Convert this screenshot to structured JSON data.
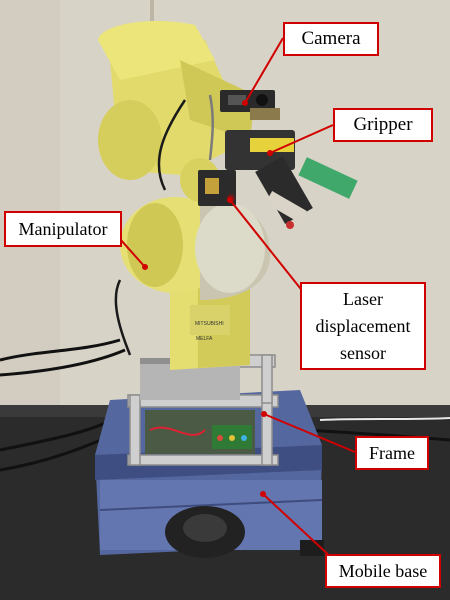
{
  "photo": {
    "subject": "robot-on-mobile-platform",
    "colors": {
      "wall": "#d8d3c7",
      "floor": "#2a2a2a",
      "arm_yellow": "#e3dc6e",
      "arm_shadow": "#b9b24a",
      "base_blue": "#5b6da6",
      "frame_silver": "#c9c9c9",
      "callout_border": "#d10000",
      "leader_line": "#d10000"
    }
  },
  "labels": {
    "camera": "Camera",
    "gripper": "Gripper",
    "manipulator": "Manipulator",
    "laser_sensor": [
      "Laser",
      "displacement",
      "sensor"
    ],
    "frame": "Frame",
    "mobile_base": "Mobile base",
    "arm_brand": "MITSUBISHI",
    "arm_model": "MELFA"
  }
}
